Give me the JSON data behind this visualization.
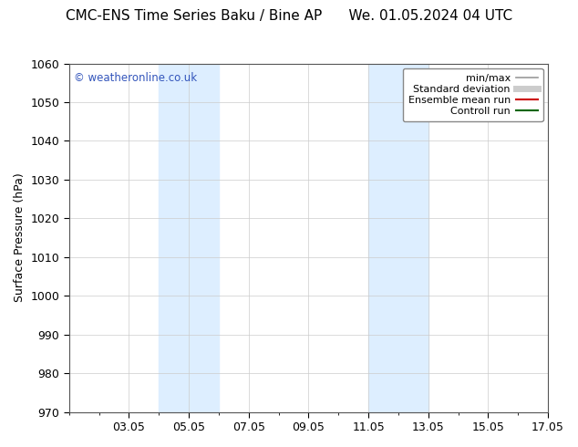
{
  "title_left": "CMC-ENS Time Series Baku / Bine AP",
  "title_right": "We. 01.05.2024 04 UTC",
  "ylabel": "Surface Pressure (hPa)",
  "ylim": [
    970,
    1060
  ],
  "yticks": [
    970,
    980,
    990,
    1000,
    1010,
    1020,
    1030,
    1040,
    1050,
    1060
  ],
  "xlim_start": 1,
  "xlim_end": 17,
  "xtick_labels": [
    "03.05",
    "05.05",
    "07.05",
    "09.05",
    "11.05",
    "13.05",
    "15.05",
    "17.05"
  ],
  "xtick_positions": [
    3,
    5,
    7,
    9,
    11,
    13,
    15,
    17
  ],
  "shaded_regions": [
    {
      "xmin": 4.0,
      "xmax": 6.0
    },
    {
      "xmin": 11.0,
      "xmax": 13.0
    }
  ],
  "shade_color": "#ddeeff",
  "watermark": "© weatheronline.co.uk",
  "watermark_color": "#3355bb",
  "legend_items": [
    {
      "label": "min/max",
      "color": "#999999",
      "lw": 1.2,
      "style": "solid"
    },
    {
      "label": "Standard deviation",
      "color": "#cccccc",
      "lw": 5,
      "style": "solid"
    },
    {
      "label": "Ensemble mean run",
      "color": "#cc0000",
      "lw": 1.5,
      "style": "solid"
    },
    {
      "label": "Controll run",
      "color": "#006600",
      "lw": 1.5,
      "style": "solid"
    }
  ],
  "bg_color": "#ffffff",
  "grid_color": "#cccccc",
  "title_fontsize": 11,
  "label_fontsize": 9,
  "tick_fontsize": 9,
  "legend_fontsize": 8
}
